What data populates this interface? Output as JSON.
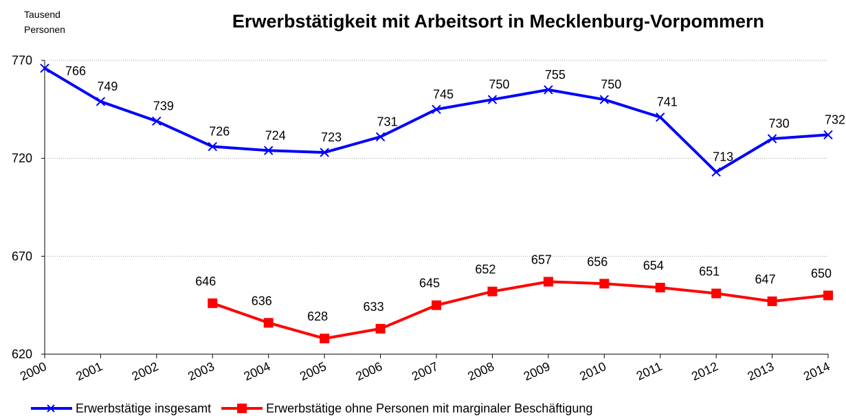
{
  "chart_data": {
    "type": "line",
    "title": "Erwerbstätigkeit mit Arbeitsort in Mecklenburg-Vorpommern",
    "y_label": [
      "Tausend",
      "Personen"
    ],
    "categories": [
      "2000",
      "2001",
      "2002",
      "2003",
      "2004",
      "2005",
      "2006",
      "2007",
      "2008",
      "2009",
      "2010",
      "2011",
      "2012",
      "2013",
      "2014"
    ],
    "series": [
      {
        "name": "Erwerbstätige insgesamt",
        "color": "#0000ff",
        "marker": "x",
        "values": [
          766,
          749,
          739,
          726,
          724,
          723,
          731,
          745,
          750,
          755,
          750,
          741,
          713,
          730,
          732
        ]
      },
      {
        "name": "Erwerbstätige ohne Personen mit marginaler Beschäftigung",
        "color": "#ff0000",
        "marker": "square",
        "values": [
          null,
          null,
          null,
          646,
          636,
          628,
          633,
          645,
          652,
          657,
          656,
          654,
          651,
          647,
          650
        ]
      }
    ],
    "ylim": [
      620,
      770
    ],
    "yticks": [
      620,
      670,
      720,
      770
    ],
    "grid": true,
    "legend": "bottom"
  }
}
